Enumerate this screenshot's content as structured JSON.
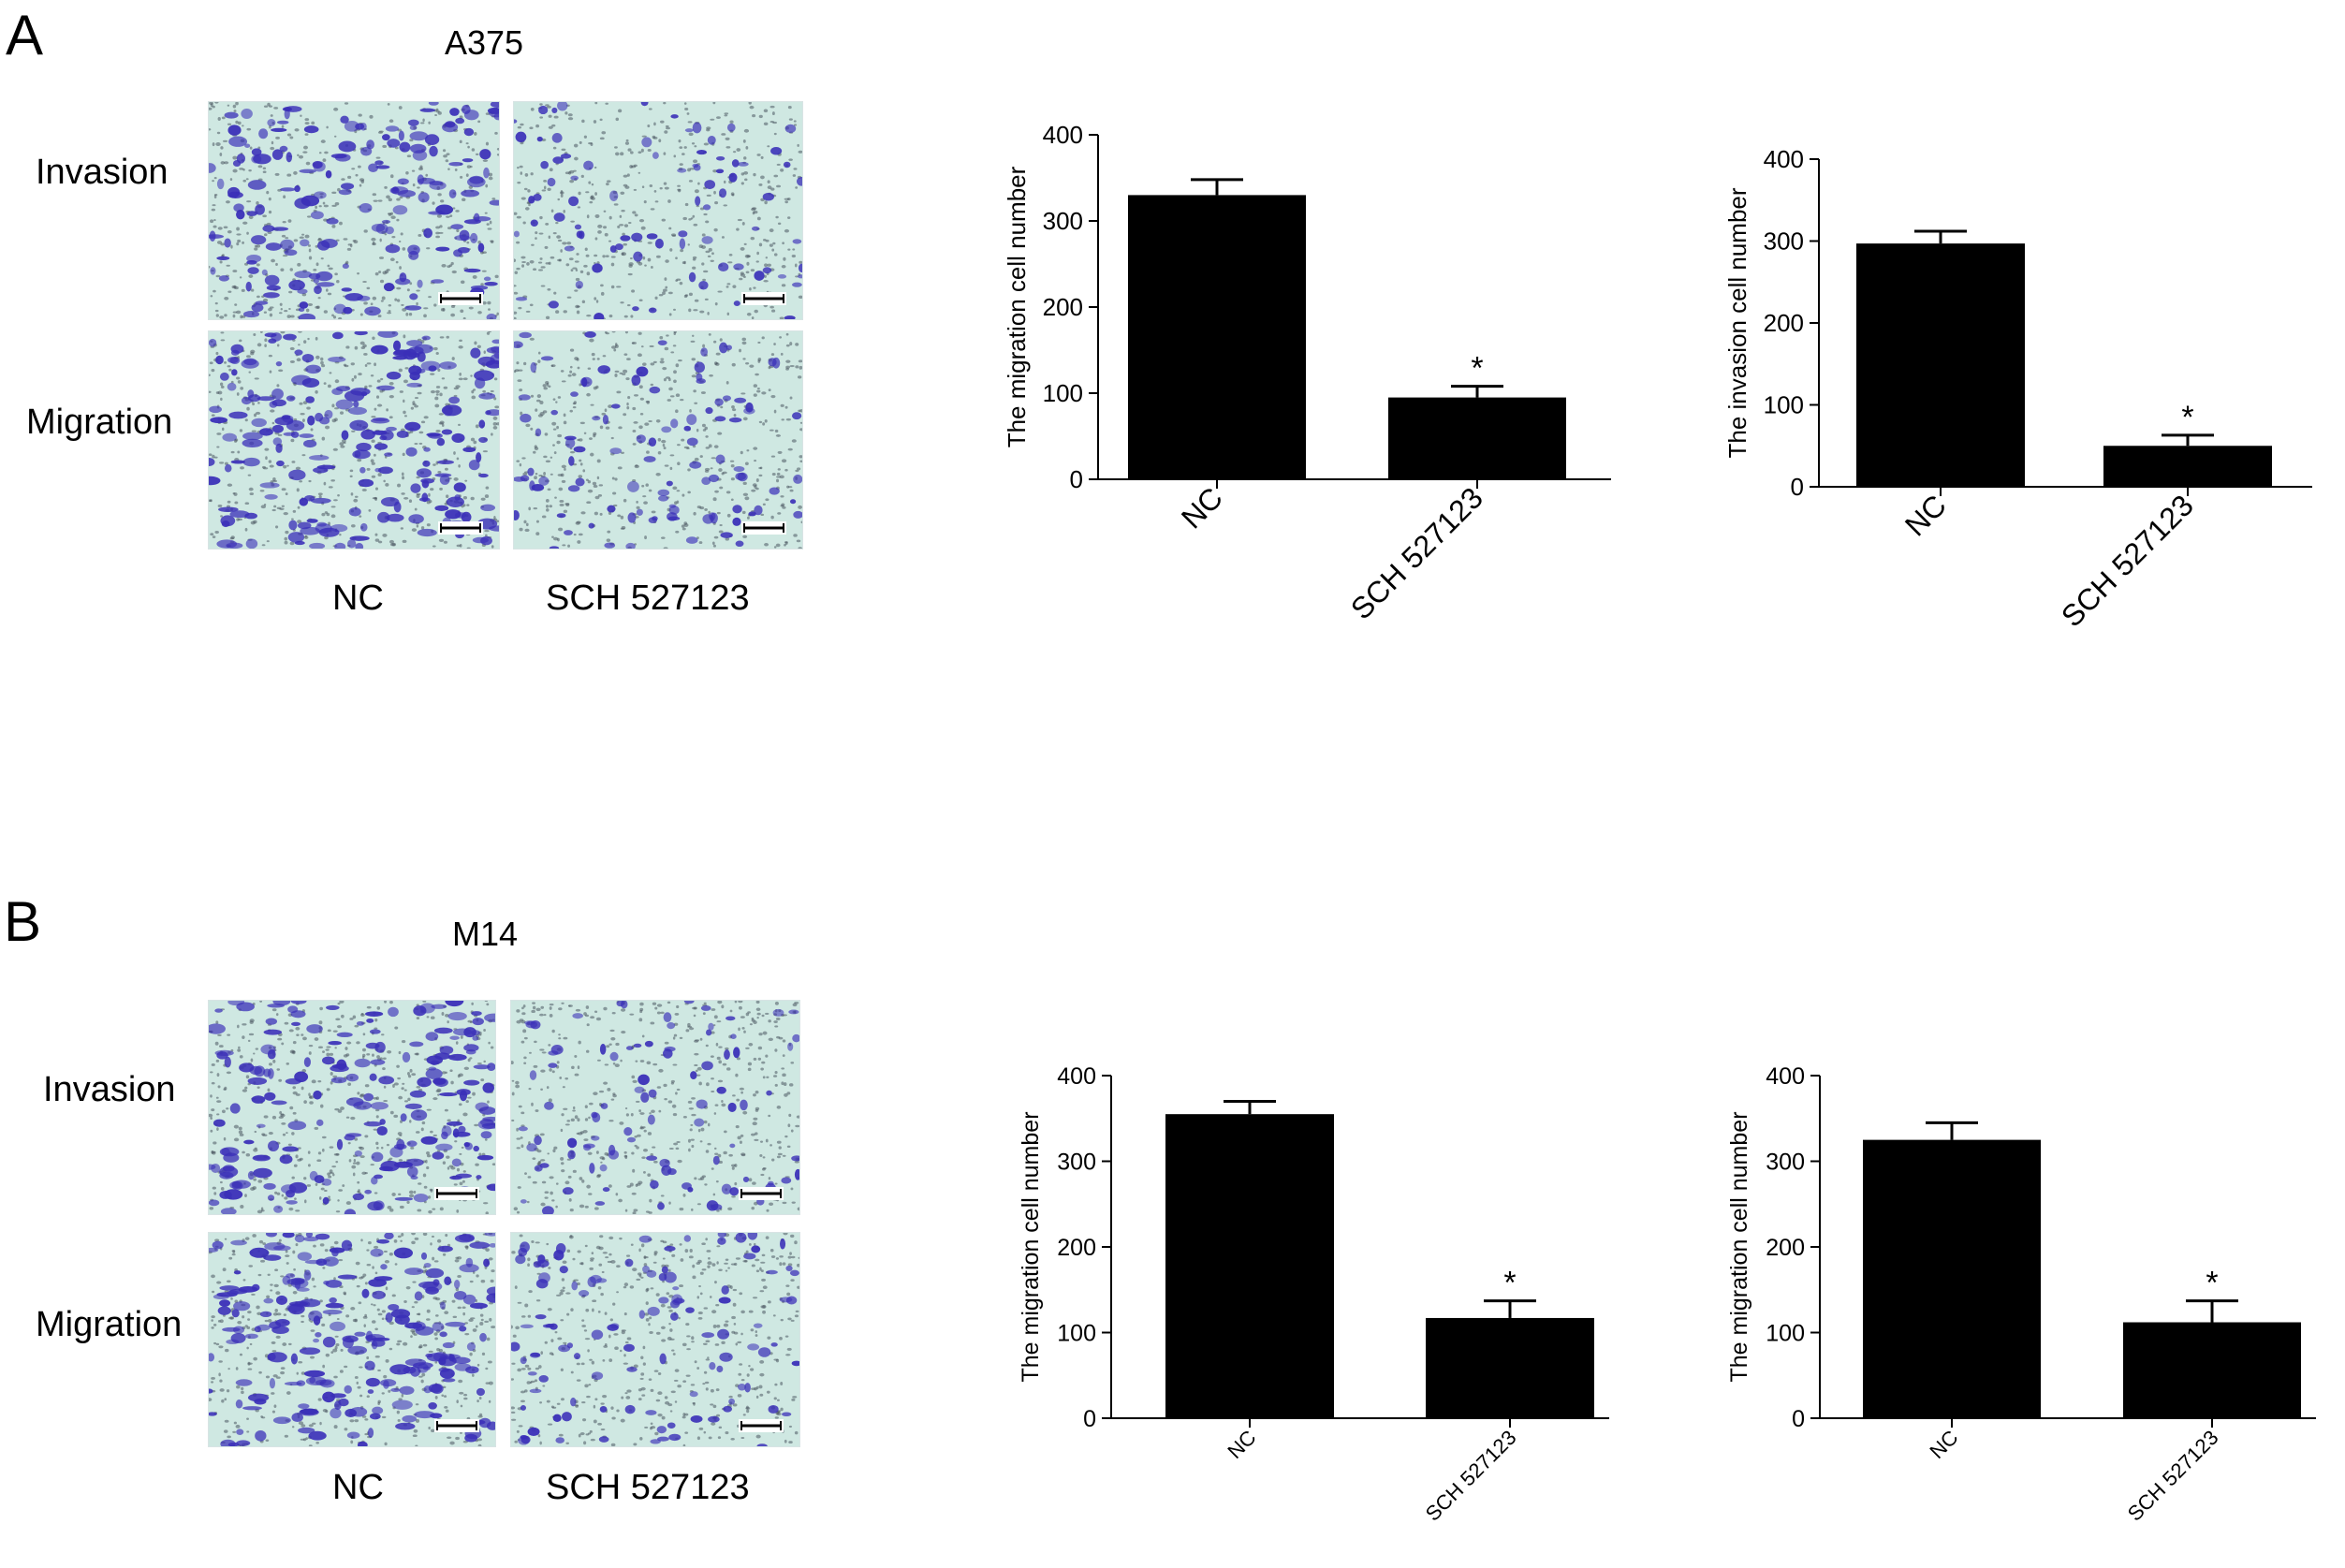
{
  "panels": [
    {
      "letter": "A",
      "cell_line": "A375",
      "rows": [
        "Invasion",
        "Migration"
      ],
      "columns": [
        "NC",
        "SCH 527123"
      ]
    },
    {
      "letter": "B",
      "cell_line": "M14",
      "rows": [
        "Invasion",
        "Migration"
      ],
      "columns": [
        "NC",
        "SCH 527123"
      ]
    }
  ],
  "colors": {
    "bar": "#000000",
    "stain": "#3a2fb8",
    "background_field": "#cfe8e2"
  },
  "chart_data": [
    {
      "type": "bar",
      "panel": "A",
      "categories": [
        "NC",
        "SCH 527123"
      ],
      "values": [
        330,
        95
      ],
      "errors": [
        18,
        13
      ],
      "significance": [
        "",
        "*"
      ],
      "ylabel": "The migration cell number",
      "ylim": [
        0,
        400
      ],
      "yticks": [
        "0",
        "100",
        "200",
        "300",
        "400"
      ],
      "xtick_rotation": -45,
      "grid": false
    },
    {
      "type": "bar",
      "panel": "A",
      "categories": [
        "NC",
        "SCH 527123"
      ],
      "values": [
        297,
        50
      ],
      "errors": [
        15,
        13
      ],
      "significance": [
        "",
        "*"
      ],
      "ylabel": "The invasion cell number",
      "ylim": [
        0,
        400
      ],
      "yticks": [
        "0",
        "100",
        "200",
        "300",
        "400"
      ],
      "xtick_rotation": -45,
      "grid": false
    },
    {
      "type": "bar",
      "panel": "B",
      "categories": [
        "NC",
        "SCH 527123"
      ],
      "values": [
        355,
        117
      ],
      "errors": [
        15,
        20
      ],
      "significance": [
        "",
        "*"
      ],
      "ylabel": "The migration cell number",
      "ylim": [
        0,
        400
      ],
      "yticks": [
        "0",
        "100",
        "200",
        "300",
        "400"
      ],
      "xtick_rotation": -45,
      "grid": false
    },
    {
      "type": "bar",
      "panel": "B",
      "categories": [
        "NC",
        "SCH 527123"
      ],
      "values": [
        325,
        112
      ],
      "errors": [
        20,
        25
      ],
      "significance": [
        "",
        "*"
      ],
      "ylabel": "The migration cell number",
      "ylim": [
        0,
        400
      ],
      "yticks": [
        "0",
        "100",
        "200",
        "300",
        "400"
      ],
      "xtick_rotation": -45,
      "grid": false
    }
  ]
}
